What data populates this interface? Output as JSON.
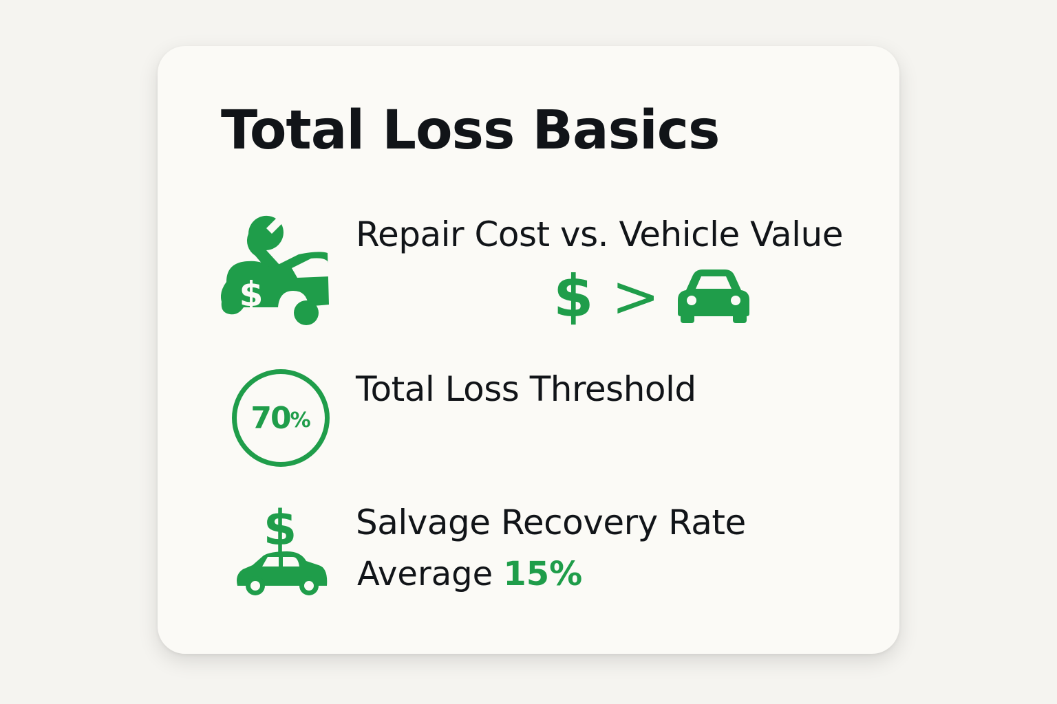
{
  "title": "Total Loss Basics",
  "accent_color": "#1f9d4a",
  "items": [
    {
      "icon": "car-repair-dollar-icon",
      "heading": "Repair Cost vs. Vehicle Value",
      "comparison": {
        "left": "$",
        "operator": ">",
        "right_icon": "car-icon"
      }
    },
    {
      "icon": "percent-circle-icon",
      "heading": "Total Loss Threshold",
      "badge_value": "70",
      "badge_unit": "%"
    },
    {
      "icon": "car-dollar-icon",
      "heading": "Salvage Recovery Rate",
      "sub_label": "Average",
      "sub_value": "15%"
    }
  ]
}
